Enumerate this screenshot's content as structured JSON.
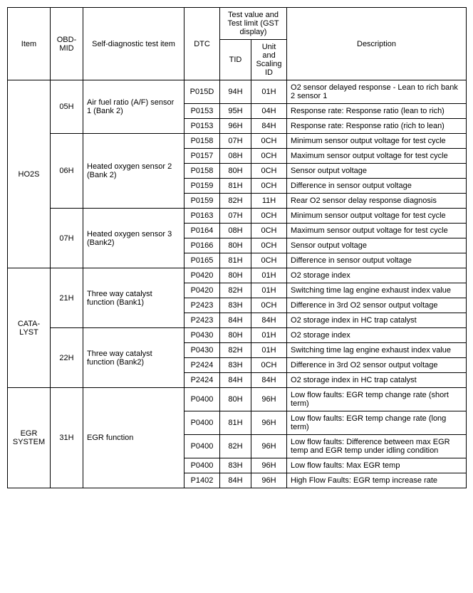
{
  "headers": {
    "item": "Item",
    "obdmid": "OBD-MID",
    "selfdiag": "Self-diagnostic test item",
    "dtc": "DTC",
    "testgroup": "Test value and Test limit\n(GST display)",
    "tid": "TID",
    "unit": "Unit and Scaling ID",
    "desc": "Description"
  },
  "groups": [
    {
      "item": "HO2S",
      "subs": [
        {
          "mid": "05H",
          "test": "Air fuel ratio (A/F) sensor 1 (Bank 2)",
          "rows": [
            {
              "dtc": "P015D",
              "tid": "94H",
              "unit": "01H",
              "desc": "O2 sensor delayed response - Lean to rich bank 2 sensor 1"
            },
            {
              "dtc": "P0153",
              "tid": "95H",
              "unit": "04H",
              "desc": "Response rate: Response ratio (lean to rich)"
            },
            {
              "dtc": "P0153",
              "tid": "96H",
              "unit": "84H",
              "desc": "Response rate: Response ratio (rich to lean)"
            }
          ]
        },
        {
          "mid": "06H",
          "test": "Heated oxygen sensor 2 (Bank 2)",
          "rows": [
            {
              "dtc": "P0158",
              "tid": "07H",
              "unit": "0CH",
              "desc": "Minimum sensor output voltage for test cycle"
            },
            {
              "dtc": "P0157",
              "tid": "08H",
              "unit": "0CH",
              "desc": "Maximum sensor output voltage for test cycle"
            },
            {
              "dtc": "P0158",
              "tid": "80H",
              "unit": "0CH",
              "desc": "Sensor output voltage"
            },
            {
              "dtc": "P0159",
              "tid": "81H",
              "unit": "0CH",
              "desc": "Difference in sensor output voltage"
            },
            {
              "dtc": "P0159",
              "tid": "82H",
              "unit": "11H",
              "desc": "Rear O2 sensor delay response diagnosis"
            }
          ]
        },
        {
          "mid": "07H",
          "test": "Heated oxygen sensor 3 (Bank2)",
          "rows": [
            {
              "dtc": "P0163",
              "tid": "07H",
              "unit": "0CH",
              "desc": "Minimum sensor output voltage for test cycle"
            },
            {
              "dtc": "P0164",
              "tid": "08H",
              "unit": "0CH",
              "desc": "Maximum sensor output voltage for test cycle"
            },
            {
              "dtc": "P0166",
              "tid": "80H",
              "unit": "0CH",
              "desc": "Sensor output voltage"
            },
            {
              "dtc": "P0165",
              "tid": "81H",
              "unit": "0CH",
              "desc": "Difference in sensor output voltage"
            }
          ]
        }
      ]
    },
    {
      "item": "CATA-LYST",
      "subs": [
        {
          "mid": "21H",
          "test": "Three way catalyst function (Bank1)",
          "rows": [
            {
              "dtc": "P0420",
              "tid": "80H",
              "unit": "01H",
              "desc": "O2 storage index"
            },
            {
              "dtc": "P0420",
              "tid": "82H",
              "unit": "01H",
              "desc": "Switching time lag engine exhaust index value"
            },
            {
              "dtc": "P2423",
              "tid": "83H",
              "unit": "0CH",
              "desc": "Difference in 3rd O2 sensor output voltage"
            },
            {
              "dtc": "P2423",
              "tid": "84H",
              "unit": "84H",
              "desc": "O2 storage index in HC trap catalyst"
            }
          ]
        },
        {
          "mid": "22H",
          "test": "Three way catalyst function (Bank2)",
          "rows": [
            {
              "dtc": "P0430",
              "tid": "80H",
              "unit": "01H",
              "desc": "O2 storage index"
            },
            {
              "dtc": "P0430",
              "tid": "82H",
              "unit": "01H",
              "desc": "Switching time lag engine exhaust index value"
            },
            {
              "dtc": "P2424",
              "tid": "83H",
              "unit": "0CH",
              "desc": "Difference in 3rd O2 sensor output voltage"
            },
            {
              "dtc": "P2424",
              "tid": "84H",
              "unit": "84H",
              "desc": "O2 storage index in HC trap catalyst"
            }
          ]
        }
      ]
    },
    {
      "item": "EGR SYSTEM",
      "subs": [
        {
          "mid": "31H",
          "test": "EGR function",
          "rows": [
            {
              "dtc": "P0400",
              "tid": "80H",
              "unit": "96H",
              "desc": "Low flow faults: EGR temp change rate (short term)"
            },
            {
              "dtc": "P0400",
              "tid": "81H",
              "unit": "96H",
              "desc": "Low flow faults: EGR temp change rate (long term)"
            },
            {
              "dtc": "P0400",
              "tid": "82H",
              "unit": "96H",
              "desc": "Low flow faults: Difference between max EGR temp and EGR temp under idling condition"
            },
            {
              "dtc": "P0400",
              "tid": "83H",
              "unit": "96H",
              "desc": "Low flow faults: Max EGR temp"
            },
            {
              "dtc": "P1402",
              "tid": "84H",
              "unit": "96H",
              "desc": "High Flow Faults: EGR temp increase rate"
            }
          ]
        }
      ]
    }
  ]
}
